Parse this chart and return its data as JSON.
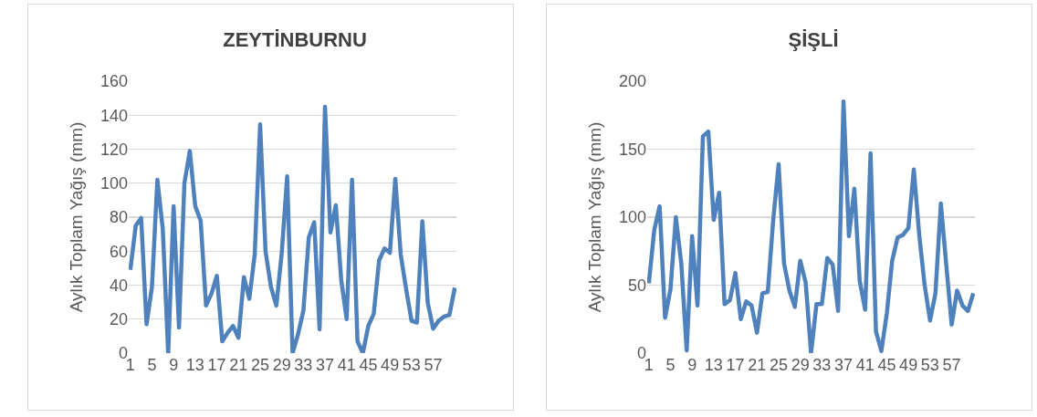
{
  "chart_data": [
    {
      "type": "line",
      "title": "ZEYTİNBURNU",
      "ylabel": "Aylık Toplam Yağış (mm)",
      "categories": [
        "1",
        null,
        null,
        null,
        "5",
        null,
        null,
        null,
        "9",
        null,
        null,
        null,
        "13",
        null,
        null,
        null,
        "17",
        null,
        null,
        null,
        "21",
        null,
        null,
        null,
        "25",
        null,
        null,
        null,
        "29",
        null,
        null,
        null,
        "33",
        null,
        null,
        null,
        "37",
        null,
        null,
        null,
        "41",
        null,
        null,
        null,
        "45",
        null,
        null,
        null,
        "49",
        null,
        null,
        null,
        "53",
        null,
        null,
        null,
        "57",
        null,
        null,
        null,
        null
      ],
      "series": [
        {
          "color": "#4f81bd",
          "values": [
            49,
            75,
            79.5,
            17,
            39,
            102,
            73,
            0,
            86.5,
            15,
            100,
            119,
            86.5,
            78,
            28,
            35,
            45.5,
            7,
            12,
            16,
            9,
            44.7,
            32,
            58,
            134.6,
            60,
            39,
            28,
            59,
            104,
            0,
            11,
            25,
            68,
            77,
            14,
            145,
            71,
            87,
            43,
            20,
            102,
            7,
            0,
            16,
            23,
            54.5,
            61.6,
            59,
            102.6,
            58,
            37.6,
            19,
            18,
            77.6,
            29.6,
            14.4,
            19,
            21.5,
            22.4,
            38.5
          ]
        }
      ],
      "ylim": [
        0,
        160
      ],
      "yticks": [
        0,
        20,
        40,
        60,
        80,
        100,
        120,
        140,
        160
      ],
      "grid": "y",
      "line_style": "solid",
      "marker": "none"
    },
    {
      "type": "line",
      "title": "ŞİŞLİ",
      "ylabel": "Aylık Toplam Yağış (mm)",
      "categories": [
        "1",
        null,
        null,
        null,
        "5",
        null,
        null,
        null,
        "9",
        null,
        null,
        null,
        "13",
        null,
        null,
        null,
        "17",
        null,
        null,
        null,
        "21",
        null,
        null,
        null,
        "25",
        null,
        null,
        null,
        "29",
        null,
        null,
        null,
        "33",
        null,
        null,
        null,
        "37",
        null,
        null,
        null,
        "41",
        null,
        null,
        null,
        "45",
        null,
        null,
        null,
        "49",
        null,
        null,
        null,
        "53",
        null,
        null,
        null,
        "57",
        null,
        null,
        null,
        null
      ],
      "series": [
        {
          "color": "#4f81bd",
          "values": [
            51.4,
            90.4,
            108,
            26,
            47,
            100,
            66,
            2,
            86,
            35,
            159.5,
            163,
            98,
            118,
            36,
            39,
            59,
            25,
            38,
            35,
            15,
            44,
            45,
            98,
            139,
            66,
            46,
            34,
            68,
            52,
            0,
            36,
            36,
            70,
            65,
            31,
            185,
            86,
            121,
            53,
            32,
            147,
            16,
            1.5,
            29,
            68,
            85,
            87,
            92,
            135,
            87,
            50,
            24,
            44,
            110,
            65,
            21,
            46,
            35,
            31,
            44
          ]
        }
      ],
      "ylim": [
        0,
        200
      ],
      "yticks": [
        0,
        50,
        100,
        150,
        200
      ],
      "grid": "y",
      "line_style": "solid",
      "marker": "none"
    }
  ]
}
